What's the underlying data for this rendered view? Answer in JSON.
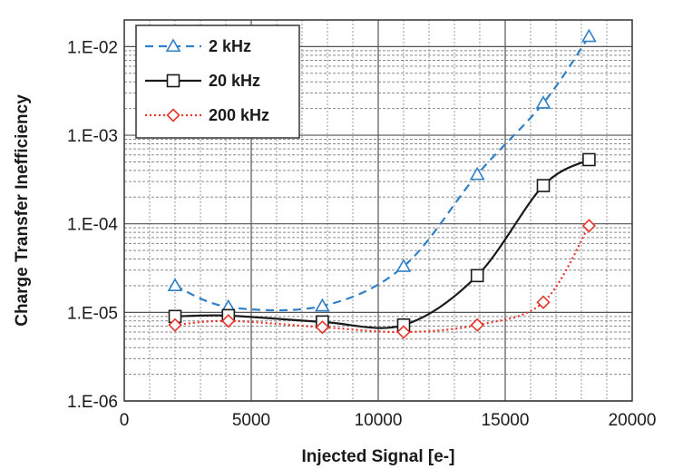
{
  "chart_data": {
    "type": "line",
    "xlabel": "Injected Signal [e-]",
    "ylabel": "Charge Transfer Inefficiency",
    "xlim": [
      0,
      20000
    ],
    "ylim": [
      1e-06,
      0.02
    ],
    "y_scale": "log",
    "x_ticks": [
      0,
      5000,
      10000,
      15000,
      20000
    ],
    "x_tick_labels": [
      "0",
      "5000",
      "10000",
      "15000",
      "20000"
    ],
    "y_ticks": [
      1e-06,
      1e-05,
      0.0001,
      0.001,
      0.01
    ],
    "y_tick_labels": [
      "1.E-06",
      "1.E-05",
      "1.E-04",
      "1.E-03",
      "1.E-02"
    ],
    "x_minor_step": 1000,
    "grid": true,
    "legend_position": "top-left",
    "series": [
      {
        "name": "2 kHz",
        "color": "#2f80c8",
        "line_style": "dashed",
        "marker": "triangle",
        "x": [
          2000,
          4100,
          7800,
          11000,
          13900,
          16500,
          18300
        ],
        "y": [
          2e-05,
          1.15e-05,
          1.18e-05,
          3.3e-05,
          0.00036,
          0.0023,
          0.013
        ]
      },
      {
        "name": "20 kHz",
        "color": "#1a1a1a",
        "line_style": "solid",
        "marker": "square",
        "x": [
          2000,
          4100,
          7800,
          11000,
          13900,
          16500,
          18300
        ],
        "y": [
          9e-06,
          9.2e-06,
          7.8e-06,
          7.2e-06,
          2.6e-05,
          0.00027,
          0.00053
        ]
      },
      {
        "name": "200 kHz",
        "color": "#e8342a",
        "line_style": "dotted",
        "marker": "diamond",
        "x": [
          2000,
          4100,
          7800,
          11000,
          13900,
          16500,
          18300
        ],
        "y": [
          7.2e-06,
          8e-06,
          6.8e-06,
          6e-06,
          7.2e-06,
          1.3e-05,
          9.5e-05
        ]
      }
    ]
  }
}
